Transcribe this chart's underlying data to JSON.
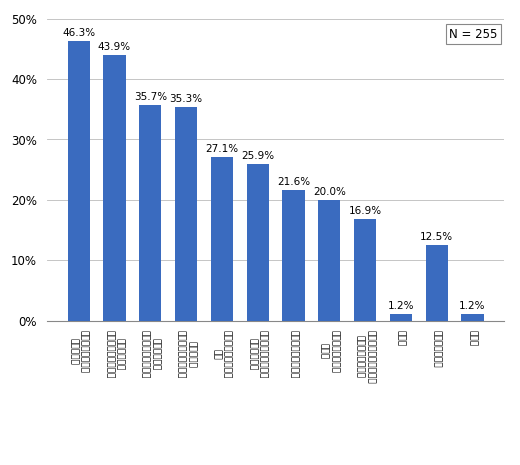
{
  "values": [
    46.3,
    43.9,
    35.7,
    35.3,
    27.1,
    25.9,
    21.6,
    20.0,
    16.9,
    1.2,
    12.5,
    1.2
  ],
  "x_labels": [
    "定期的に分配金が\n受け取れる",
    "投資ができる\n専門知識がなくても",
    "面白味がある\n少額でも株式投資の",
    "期待できる\n比較的高い利回りが",
    "購入手続きが簡単で\nある",
    "目的に応じて選べる\n種類が豊富で",
    "積立て投資ができる",
    "海外投資が手軽に\nできる",
    "複利に回る商品がある\n分配金が自動的に",
    "その他",
    "よくわからない",
    "無回答"
  ],
  "bar_color": "#3a6bbf",
  "ylim": [
    0,
    50
  ],
  "yticks": [
    0,
    10,
    20,
    30,
    40,
    50
  ],
  "ytick_labels": [
    "0%",
    "10%",
    "20%",
    "30%",
    "40%",
    "50%"
  ],
  "n_label": "N = 255",
  "background_color": "#ffffff",
  "grid_color": "#bbbbbb"
}
